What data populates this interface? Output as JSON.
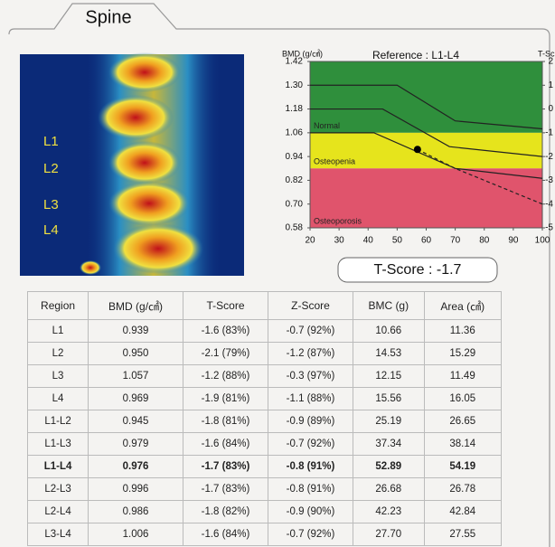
{
  "tab": "Spine",
  "scan_labels": [
    "L1",
    "L2",
    "L3",
    "L4"
  ],
  "chart_data": {
    "type": "line",
    "title": "Reference : L1-L4",
    "y_label": "BMD (g/㎠)",
    "y2_label": "T-Sc",
    "xlim": [
      20,
      100
    ],
    "xticks": [
      20,
      30,
      40,
      50,
      60,
      70,
      80,
      90,
      100
    ],
    "ylim": [
      0.58,
      1.42
    ],
    "yticks": [
      0.58,
      {
        "value": 0.7,
        "label": "0.70"
      },
      0.82,
      0.94,
      1.06,
      1.18,
      {
        "value": 1.3,
        "label": "1.30"
      },
      1.42
    ],
    "y2lim": [
      -5,
      2
    ],
    "y2ticks": [
      -5,
      -4,
      -3,
      -2,
      -1,
      0,
      1,
      2
    ],
    "zones": [
      {
        "name": "Normal",
        "color": "#2f8f3c",
        "range": [
          1.06,
          1.42
        ]
      },
      {
        "name": "Osteopenia",
        "color": "#e6e41c",
        "range": [
          0.88,
          1.06
        ]
      },
      {
        "name": "Osteoporosis",
        "color": "#e0546c",
        "range": [
          0.58,
          0.88
        ]
      }
    ],
    "series": [
      {
        "color": "#222",
        "dash": false,
        "x": [
          20,
          50,
          70,
          100
        ],
        "values": [
          1.3,
          1.3,
          1.12,
          1.08
        ]
      },
      {
        "color": "#222",
        "dash": false,
        "x": [
          20,
          45,
          68,
          100
        ],
        "values": [
          1.18,
          1.18,
          0.99,
          0.94
        ]
      },
      {
        "color": "#222",
        "dash": false,
        "x": [
          20,
          42,
          70,
          100
        ],
        "values": [
          1.06,
          1.06,
          0.88,
          0.83
        ]
      },
      {
        "color": "#222",
        "dash": true,
        "x": [
          57,
          70,
          100
        ],
        "values": [
          0.976,
          0.88,
          0.7
        ]
      }
    ],
    "point": {
      "x": 57,
      "value": 0.976,
      "color": "#000"
    }
  },
  "t_score": "T-Score : -1.7",
  "table": {
    "header": [
      "Region",
      "BMD (g/㎠)",
      "T-Score",
      "Z-Score",
      "BMC (g)",
      "Area (㎠)"
    ],
    "bold_row": 6,
    "rows": [
      [
        "L1",
        "0.939",
        "-1.6 (83%)",
        "-0.7 (92%)",
        "10.66",
        "11.36"
      ],
      [
        "L2",
        "0.950",
        "-2.1 (79%)",
        "-1.2 (87%)",
        "14.53",
        "15.29"
      ],
      [
        "L3",
        "1.057",
        "-1.2 (88%)",
        "-0.3 (97%)",
        "12.15",
        "11.49"
      ],
      [
        "L4",
        "0.969",
        "-1.9 (81%)",
        "-1.1 (88%)",
        "15.56",
        "16.05"
      ],
      [
        "L1-L2",
        "0.945",
        "-1.8 (81%)",
        "-0.9 (89%)",
        "25.19",
        "26.65"
      ],
      [
        "L1-L3",
        "0.979",
        "-1.6 (84%)",
        "-0.7 (92%)",
        "37.34",
        "38.14"
      ],
      [
        "L1-L4",
        "0.976",
        "-1.7 (83%)",
        "-0.8 (91%)",
        "52.89",
        "54.19"
      ],
      [
        "L2-L3",
        "0.996",
        "-1.7 (83%)",
        "-0.8 (91%)",
        "26.68",
        "26.78"
      ],
      [
        "L2-L4",
        "0.986",
        "-1.8 (82%)",
        "-0.9 (90%)",
        "42.23",
        "42.84"
      ],
      [
        "L3-L4",
        "1.006",
        "-1.6 (84%)",
        "-0.7 (92%)",
        "27.70",
        "27.55"
      ]
    ]
  }
}
